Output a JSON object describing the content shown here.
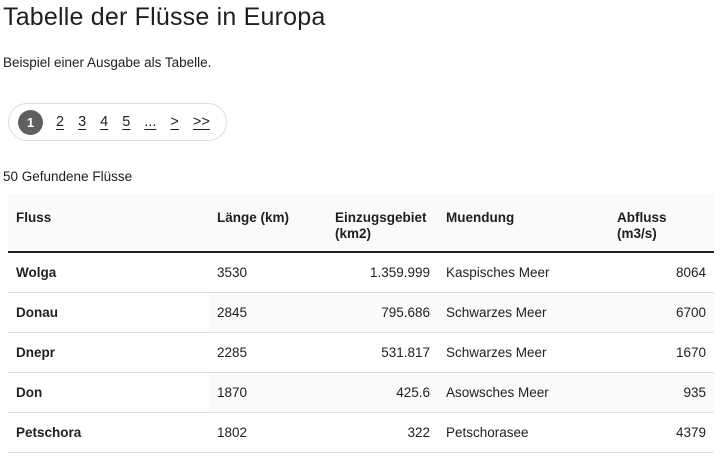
{
  "page": {
    "title": "Tabelle der Flüsse in Europa",
    "subtitle": "Beispiel einer Ausgabe als Tabelle."
  },
  "pagination": {
    "items": [
      {
        "label": "1",
        "active": true
      },
      {
        "label": "2",
        "active": false
      },
      {
        "label": "3",
        "active": false
      },
      {
        "label": "4",
        "active": false
      },
      {
        "label": "5",
        "active": false
      },
      {
        "label": "...",
        "active": false
      },
      {
        "label": ">",
        "active": false
      },
      {
        "label": ">>",
        "active": false
      }
    ]
  },
  "results": {
    "count_text": "50 Gefundene Flüsse"
  },
  "table": {
    "columns": [
      {
        "label": "Fluss"
      },
      {
        "label": "Länge (km)"
      },
      {
        "label": "Einzugsgebiet (km2)"
      },
      {
        "label": "Muendung"
      },
      {
        "label": "Abfluss (m3/s)"
      }
    ],
    "rows": [
      [
        "Wolga",
        "3530",
        "1.359.999",
        "Kaspisches Meer",
        "8064"
      ],
      [
        "Donau",
        "2845",
        "795.686",
        "Schwarzes Meer",
        "6700"
      ],
      [
        "Dnepr",
        "2285",
        "531.817",
        "Schwarzes Meer",
        "1670"
      ],
      [
        "Don",
        "1870",
        "425.6",
        "Asowsches Meer",
        "935"
      ],
      [
        "Petschora",
        "1802",
        "322",
        "Petschorasee",
        "4379"
      ]
    ]
  },
  "colors": {
    "active_page_bg": "#5f5f5f",
    "active_page_text": "#ffffff",
    "header_bg": "#fafafa",
    "stripe_bg": "#fafafa",
    "row_divider": "#dedede",
    "header_divider": "#1f1f1f",
    "pill_border": "#dcdcdc",
    "text": "#212121"
  }
}
